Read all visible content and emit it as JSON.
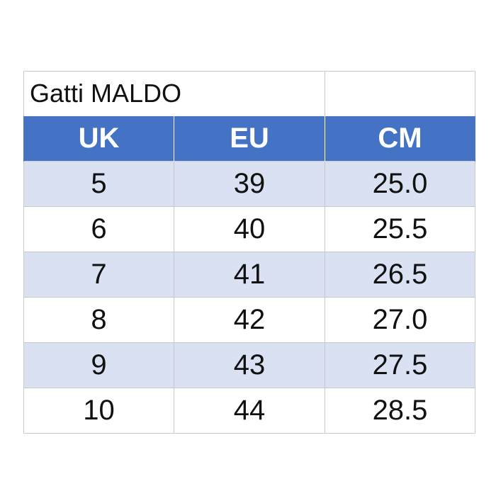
{
  "title": "Gatti MALDO",
  "header": {
    "uk": "UK",
    "eu": "EU",
    "cm": "CM"
  },
  "rows": [
    {
      "uk": "5",
      "eu": "39",
      "cm": "25.0"
    },
    {
      "uk": "6",
      "eu": "40",
      "cm": "25.5"
    },
    {
      "uk": "7",
      "eu": "41",
      "cm": "26.5"
    },
    {
      "uk": "8",
      "eu": "42",
      "cm": "27.0"
    },
    {
      "uk": "9",
      "eu": "43",
      "cm": "27.5"
    },
    {
      "uk": "10",
      "eu": "44",
      "cm": "28.5"
    }
  ],
  "colors": {
    "header_background": "#4472c4",
    "header_text": "#ffffff",
    "band_background": "#d9e1f2",
    "grid_line": "#c9c9c9"
  }
}
